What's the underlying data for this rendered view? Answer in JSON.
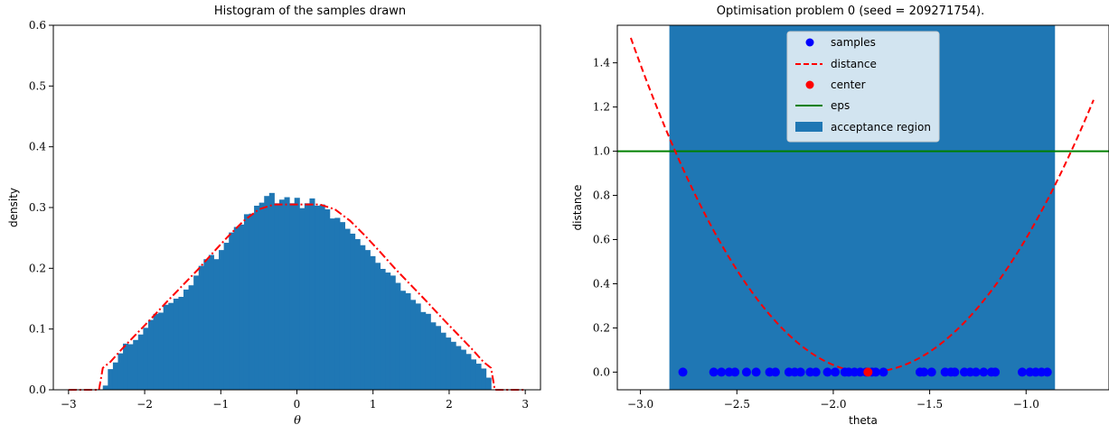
{
  "chart_data": [
    {
      "type": "bar",
      "title": "Histogram of the samples drawn",
      "xlabel": "θ",
      "ylabel": "density",
      "xlim": [
        -3.2,
        3.2
      ],
      "ylim": [
        0.0,
        0.6
      ],
      "xticks": [
        "−3",
        "−2",
        "−1",
        "0",
        "1",
        "2",
        "3"
      ],
      "yticks": [
        "0.0",
        "0.1",
        "0.2",
        "0.3",
        "0.4",
        "0.5",
        "0.6"
      ],
      "grid": false,
      "bars": {
        "color": "#1f77b4",
        "x_start": -2.55,
        "x_end": 2.55,
        "values": [
          0.007,
          0.034,
          0.045,
          0.06,
          0.076,
          0.075,
          0.082,
          0.091,
          0.102,
          0.115,
          0.125,
          0.127,
          0.14,
          0.143,
          0.15,
          0.153,
          0.165,
          0.172,
          0.188,
          0.204,
          0.215,
          0.222,
          0.215,
          0.23,
          0.242,
          0.259,
          0.268,
          0.272,
          0.289,
          0.29,
          0.303,
          0.308,
          0.319,
          0.324,
          0.307,
          0.313,
          0.317,
          0.307,
          0.316,
          0.299,
          0.307,
          0.315,
          0.303,
          0.305,
          0.297,
          0.282,
          0.283,
          0.276,
          0.265,
          0.257,
          0.248,
          0.238,
          0.23,
          0.22,
          0.209,
          0.199,
          0.193,
          0.188,
          0.176,
          0.163,
          0.159,
          0.148,
          0.142,
          0.128,
          0.125,
          0.111,
          0.105,
          0.094,
          0.086,
          0.079,
          0.072,
          0.066,
          0.059,
          0.05,
          0.043,
          0.035,
          0.02
        ]
      },
      "series": [
        {
          "style": "dash-dot",
          "color": "#ff0000",
          "x": [
            -3.0,
            -2.85,
            -2.6,
            -2.55,
            -2.45,
            -2.3,
            -2.1,
            -1.9,
            -1.7,
            -1.5,
            -1.3,
            -1.1,
            -0.9,
            -0.7,
            -0.5,
            -0.3,
            0.0,
            0.3,
            0.5,
            0.7,
            0.9,
            1.1,
            1.3,
            1.5,
            1.7,
            1.9,
            2.1,
            2.3,
            2.45,
            2.55,
            2.6,
            2.85,
            3.0
          ],
          "y": [
            0.0,
            0.0,
            0.0,
            0.036,
            0.046,
            0.067,
            0.093,
            0.119,
            0.146,
            0.172,
            0.198,
            0.226,
            0.253,
            0.278,
            0.297,
            0.305,
            0.305,
            0.305,
            0.297,
            0.278,
            0.253,
            0.226,
            0.198,
            0.172,
            0.146,
            0.119,
            0.093,
            0.067,
            0.046,
            0.036,
            0.0,
            0.0,
            0.0
          ]
        }
      ]
    },
    {
      "type": "line",
      "title": "Optimisation problem 0 (seed = 209271754).",
      "xlabel": "theta",
      "ylabel": "distance",
      "xlim": [
        -3.12,
        -0.57
      ],
      "ylim": [
        -0.08,
        1.57
      ],
      "xticks": [
        "−3.0",
        "−2.5",
        "−2.0",
        "−1.5",
        "−1.0"
      ],
      "yticks": [
        "0.0",
        "0.2",
        "0.4",
        "0.6",
        "0.8",
        "1.0",
        "1.2",
        "1.4"
      ],
      "grid": false,
      "legend": {
        "position": "top-center",
        "entries": [
          "samples",
          "distance",
          "center",
          "eps",
          "acceptance region"
        ]
      },
      "acceptance_region": {
        "x": [
          -2.85,
          -0.85
        ],
        "color": "#1f77b4"
      },
      "eps": {
        "y": 1.0,
        "color": "#008000"
      },
      "distance_curve": {
        "color": "#ff0000",
        "style": "dashed",
        "x_range": [
          -3.05,
          -0.65
        ],
        "center": -1.82,
        "coef_left": 1.0,
        "coef_right": 0.9
      },
      "samples": {
        "color": "#0000ff",
        "y": 0.0,
        "x": [
          -2.78,
          -2.62,
          -2.58,
          -2.54,
          -2.51,
          -2.45,
          -2.4,
          -2.33,
          -2.3,
          -2.23,
          -2.2,
          -2.17,
          -2.12,
          -2.09,
          -2.03,
          -1.99,
          -1.94,
          -1.92,
          -1.89,
          -1.86,
          -1.83,
          -1.8,
          -1.78,
          -1.74,
          -1.55,
          -1.53,
          -1.49,
          -1.42,
          -1.39,
          -1.37,
          -1.32,
          -1.29,
          -1.26,
          -1.22,
          -1.18,
          -1.16,
          -1.02,
          -0.98,
          -0.95,
          -0.92,
          -0.89
        ]
      },
      "center": {
        "x": -1.82,
        "y": 0.0,
        "color": "#ff0000"
      }
    }
  ]
}
